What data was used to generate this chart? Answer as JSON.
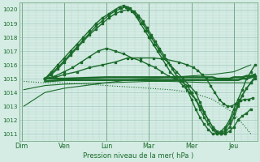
{
  "title": "",
  "xlabel": "Pression niveau de la mer( hPa )",
  "ylabel": "",
  "bg_color": "#d4ece4",
  "grid_color_minor": "#b8d8d0",
  "grid_color_major": "#98c0b8",
  "line_color": "#1a6b2a",
  "day_sep_color": "#7aaa8a",
  "ylim": [
    1010.5,
    1020.5
  ],
  "yticks": [
    1011,
    1012,
    1013,
    1014,
    1015,
    1016,
    1017,
    1018,
    1019,
    1020
  ],
  "day_labels": [
    "Dim",
    "Ven",
    "Lun",
    "Mar",
    "Mer",
    "Jeu"
  ],
  "day_positions": [
    0,
    1,
    2,
    3,
    4,
    5
  ],
  "xlim": [
    -0.05,
    5.55
  ],
  "series": [
    {
      "x": [
        0.55,
        1.0,
        2.0,
        3.0,
        4.0,
        4.4,
        4.5,
        4.6,
        4.7,
        4.8,
        4.9,
        5.0,
        5.1,
        5.2,
        5.3,
        5.4,
        5.5
      ],
      "y": [
        1014.8,
        1014.9,
        1014.9,
        1014.9,
        1014.9,
        1014.9,
        1014.9,
        1014.9,
        1014.9,
        1014.9,
        1014.9,
        1014.9,
        1014.9,
        1015.0,
        1015.0,
        1015.1,
        1015.2
      ],
      "linewidth": 1.8,
      "marker": null
    },
    {
      "x": [
        0.55,
        1.0,
        2.0,
        3.0,
        4.0,
        4.4,
        4.5,
        4.6,
        4.7,
        4.8,
        4.9,
        5.0,
        5.1,
        5.2,
        5.3,
        5.4,
        5.5
      ],
      "y": [
        1015.0,
        1015.0,
        1015.1,
        1015.1,
        1015.1,
        1015.1,
        1015.1,
        1015.0,
        1015.0,
        1015.0,
        1015.0,
        1015.1,
        1015.1,
        1015.1,
        1015.2,
        1015.2,
        1015.3
      ],
      "linewidth": 1.8,
      "marker": null
    },
    {
      "x": [
        0.55,
        0.8,
        1.0,
        1.3,
        1.6,
        1.9,
        2.2,
        2.5,
        2.8,
        3.1,
        3.4,
        3.7,
        3.9,
        4.05,
        4.15,
        4.25,
        4.35,
        4.45,
        4.55,
        4.65,
        4.75,
        4.85,
        4.95,
        5.05,
        5.15,
        5.25,
        5.35,
        5.45
      ],
      "y": [
        1015.0,
        1015.1,
        1015.3,
        1015.5,
        1015.8,
        1016.0,
        1016.2,
        1016.5,
        1016.5,
        1016.5,
        1016.4,
        1016.2,
        1016.0,
        1015.8,
        1015.6,
        1015.3,
        1015.0,
        1014.5,
        1014.0,
        1013.5,
        1013.2,
        1013.0,
        1013.0,
        1013.2,
        1013.4,
        1013.5,
        1013.5,
        1013.6
      ],
      "linewidth": 1.0,
      "marker": "s",
      "markersize": 1.8
    },
    {
      "x": [
        0.55,
        0.8,
        1.0,
        1.2,
        1.4,
        1.6,
        1.8,
        2.0,
        2.2,
        2.4,
        2.6,
        2.8,
        3.0,
        3.15,
        3.3,
        3.45,
        3.6,
        3.75,
        3.9,
        4.0,
        4.1,
        4.2,
        4.3,
        4.4,
        4.5,
        4.6,
        4.7,
        4.8,
        4.9,
        5.0,
        5.1,
        5.2,
        5.3,
        5.4
      ],
      "y": [
        1015.0,
        1015.2,
        1015.5,
        1015.8,
        1016.2,
        1016.6,
        1017.0,
        1017.2,
        1017.0,
        1016.8,
        1016.5,
        1016.3,
        1016.0,
        1015.8,
        1015.5,
        1015.2,
        1015.0,
        1014.8,
        1014.5,
        1014.0,
        1013.5,
        1013.0,
        1012.5,
        1012.0,
        1011.5,
        1011.2,
        1011.0,
        1011.0,
        1011.2,
        1011.5,
        1012.0,
        1012.3,
        1012.5,
        1012.8
      ],
      "linewidth": 1.0,
      "marker": "s",
      "markersize": 1.8
    },
    {
      "x": [
        0.55,
        0.7,
        0.85,
        1.0,
        1.15,
        1.3,
        1.45,
        1.6,
        1.75,
        1.9,
        2.05,
        2.2,
        2.35,
        2.5,
        2.65,
        2.75,
        2.85,
        2.95,
        3.05,
        3.15,
        3.25,
        3.35,
        3.45,
        3.55,
        3.65,
        3.8,
        3.9,
        4.0,
        4.1,
        4.2,
        4.3,
        4.4,
        4.5,
        4.6,
        4.7,
        4.8,
        4.9,
        5.0,
        5.1,
        5.2,
        5.3,
        5.4,
        5.5
      ],
      "y": [
        1015.0,
        1015.3,
        1015.7,
        1016.2,
        1016.7,
        1017.2,
        1017.7,
        1018.2,
        1018.6,
        1019.0,
        1019.4,
        1019.7,
        1019.9,
        1020.0,
        1019.9,
        1019.6,
        1019.2,
        1018.7,
        1018.2,
        1017.7,
        1017.2,
        1016.7,
        1016.2,
        1015.7,
        1015.2,
        1014.8,
        1014.2,
        1013.5,
        1012.8,
        1012.2,
        1011.7,
        1011.3,
        1011.0,
        1011.0,
        1011.2,
        1011.5,
        1012.0,
        1012.8,
        1013.5,
        1014.2,
        1015.0,
        1015.5,
        1016.0
      ],
      "linewidth": 1.0,
      "marker": "s",
      "markersize": 1.8
    },
    {
      "x": [
        0.55,
        0.7,
        0.85,
        1.0,
        1.15,
        1.3,
        1.45,
        1.6,
        1.75,
        1.9,
        2.05,
        2.2,
        2.35,
        2.45,
        2.55,
        2.65,
        2.75,
        2.85,
        2.95,
        3.05,
        3.15,
        3.25,
        3.35,
        3.5,
        3.65,
        3.8,
        3.95,
        4.1,
        4.2,
        4.3,
        4.4,
        4.5,
        4.6,
        4.7,
        4.8,
        4.9,
        5.0,
        5.1,
        5.2,
        5.3,
        5.4,
        5.5
      ],
      "y": [
        1015.0,
        1015.4,
        1015.8,
        1016.3,
        1016.8,
        1017.3,
        1017.8,
        1018.3,
        1018.8,
        1019.2,
        1019.6,
        1019.9,
        1020.1,
        1020.2,
        1020.1,
        1019.8,
        1019.4,
        1019.0,
        1018.5,
        1018.0,
        1017.5,
        1017.0,
        1016.5,
        1016.0,
        1015.5,
        1015.0,
        1014.5,
        1014.0,
        1013.3,
        1012.6,
        1012.0,
        1011.5,
        1011.1,
        1011.0,
        1011.1,
        1011.5,
        1012.2,
        1013.0,
        1013.8,
        1014.3,
        1014.7,
        1015.0
      ],
      "linewidth": 1.0,
      "marker": "s",
      "markersize": 1.8
    },
    {
      "x": [
        0.55,
        0.7,
        0.85,
        1.0,
        1.15,
        1.3,
        1.45,
        1.6,
        1.75,
        1.9,
        2.05,
        2.2,
        2.3,
        2.4,
        2.5,
        2.6,
        2.7,
        2.8,
        2.9,
        3.0,
        3.1,
        3.2,
        3.3,
        3.4,
        3.5,
        3.65,
        3.8,
        3.95,
        4.1,
        4.2,
        4.3,
        4.4,
        4.5,
        4.6,
        4.7,
        4.8,
        4.9,
        5.0,
        5.1,
        5.2,
        5.3,
        5.4,
        5.5
      ],
      "y": [
        1015.0,
        1015.5,
        1016.0,
        1016.5,
        1017.0,
        1017.5,
        1018.0,
        1018.5,
        1019.0,
        1019.4,
        1019.7,
        1020.0,
        1020.2,
        1020.3,
        1020.2,
        1019.9,
        1019.5,
        1019.0,
        1018.5,
        1018.0,
        1017.5,
        1017.0,
        1016.5,
        1016.0,
        1015.5,
        1015.0,
        1014.5,
        1014.0,
        1013.5,
        1012.8,
        1012.2,
        1011.7,
        1011.3,
        1011.0,
        1011.0,
        1011.3,
        1011.8,
        1012.5,
        1013.2,
        1013.8,
        1014.3,
        1014.7,
        1015.2
      ],
      "linewidth": 1.0,
      "marker": "s",
      "markersize": 1.8
    },
    {
      "x": [
        0.05,
        0.3,
        0.55,
        1.0,
        1.5,
        2.0,
        2.5,
        3.0,
        3.5,
        4.0,
        4.5,
        5.0,
        5.4
      ],
      "y": [
        1013.0,
        1013.5,
        1014.0,
        1014.3,
        1014.5,
        1014.7,
        1014.9,
        1015.0,
        1015.1,
        1015.2,
        1015.3,
        1015.5,
        1016.0
      ],
      "linewidth": 0.8,
      "marker": null
    },
    {
      "x": [
        0.05,
        0.55,
        1.0,
        1.5,
        2.0,
        2.5,
        3.0,
        3.5,
        4.0,
        4.5,
        5.0,
        5.4
      ],
      "y": [
        1014.2,
        1014.5,
        1014.6,
        1014.65,
        1014.7,
        1014.75,
        1014.8,
        1014.8,
        1014.75,
        1014.7,
        1014.7,
        1014.7
      ],
      "linewidth": 0.8,
      "marker": null
    },
    {
      "x": [
        0.05,
        0.5,
        1.0,
        1.5,
        2.0,
        2.5,
        3.0,
        3.5,
        4.0,
        4.5,
        5.0,
        5.4
      ],
      "y": [
        1014.8,
        1014.7,
        1014.7,
        1014.6,
        1014.5,
        1014.4,
        1014.3,
        1014.2,
        1014.0,
        1013.5,
        1012.5,
        1011.0
      ],
      "linewidth": 0.8,
      "marker": null,
      "linestyle": "dotted"
    }
  ]
}
